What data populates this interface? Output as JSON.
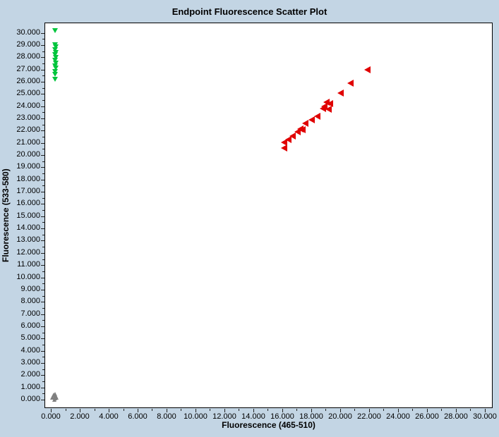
{
  "chart_data": {
    "type": "scatter",
    "title": "Endpoint Fluorescence Scatter Plot",
    "xlabel": "Fluorescence (465-510)",
    "ylabel": "Fluorescence (533-580)",
    "xlim": [
      -0.44,
      30.54
    ],
    "ylim": [
      -0.69,
      30.84
    ],
    "x_ticks": {
      "start": 0,
      "end": 30,
      "major_step": 2,
      "minor_step": 1,
      "label_suffix": ".000"
    },
    "y_ticks": {
      "start": 0,
      "end": 30,
      "major_step": 1,
      "minor_step": 0.5,
      "label_suffix": ".000"
    },
    "grid": false,
    "legend": "none",
    "colors": {
      "background": "#c3d5e4",
      "plot_background": "#ffffff",
      "axis": "#000000",
      "green_series": "#00c53c",
      "red_series": "#e00000",
      "gray_series": "#7f7f7f"
    },
    "series": [
      {
        "name": "green-cluster",
        "marker": "triangle-down",
        "color": "#00c53c",
        "points": [
          [
            0.34,
            30.2
          ],
          [
            0.34,
            29.05
          ],
          [
            0.38,
            28.85
          ],
          [
            0.32,
            28.6
          ],
          [
            0.36,
            28.4
          ],
          [
            0.32,
            28.2
          ],
          [
            0.36,
            28.0
          ],
          [
            0.32,
            27.75
          ],
          [
            0.36,
            27.55
          ],
          [
            0.32,
            27.3
          ],
          [
            0.36,
            27.1
          ],
          [
            0.32,
            26.85
          ],
          [
            0.34,
            26.6
          ],
          [
            0.34,
            26.2
          ]
        ]
      },
      {
        "name": "red-cluster",
        "marker": "triangle-left",
        "color": "#e00000",
        "points": [
          [
            21.9,
            27.0
          ],
          [
            20.7,
            25.9
          ],
          [
            20.05,
            25.1
          ],
          [
            19.3,
            24.2
          ],
          [
            19.07,
            24.3
          ],
          [
            18.9,
            24.0
          ],
          [
            19.2,
            23.75
          ],
          [
            18.8,
            23.8
          ],
          [
            18.4,
            23.2
          ],
          [
            18.05,
            22.9
          ],
          [
            17.6,
            22.6
          ],
          [
            17.4,
            22.1
          ],
          [
            17.25,
            22.15
          ],
          [
            17.07,
            21.9
          ],
          [
            16.7,
            21.55
          ],
          [
            16.4,
            21.3
          ],
          [
            16.1,
            21.05
          ],
          [
            16.1,
            20.6
          ]
        ]
      },
      {
        "name": "gray-cluster",
        "marker": "triangle-up",
        "color": "#7f7f7f",
        "points": [
          [
            0.2,
            0.4
          ],
          [
            0.32,
            0.48
          ],
          [
            0.25,
            0.25
          ],
          [
            0.38,
            0.3
          ],
          [
            0.14,
            0.18
          ],
          [
            0.3,
            0.12
          ],
          [
            0.42,
            0.18
          ],
          [
            0.27,
            0.02
          ]
        ]
      }
    ]
  }
}
